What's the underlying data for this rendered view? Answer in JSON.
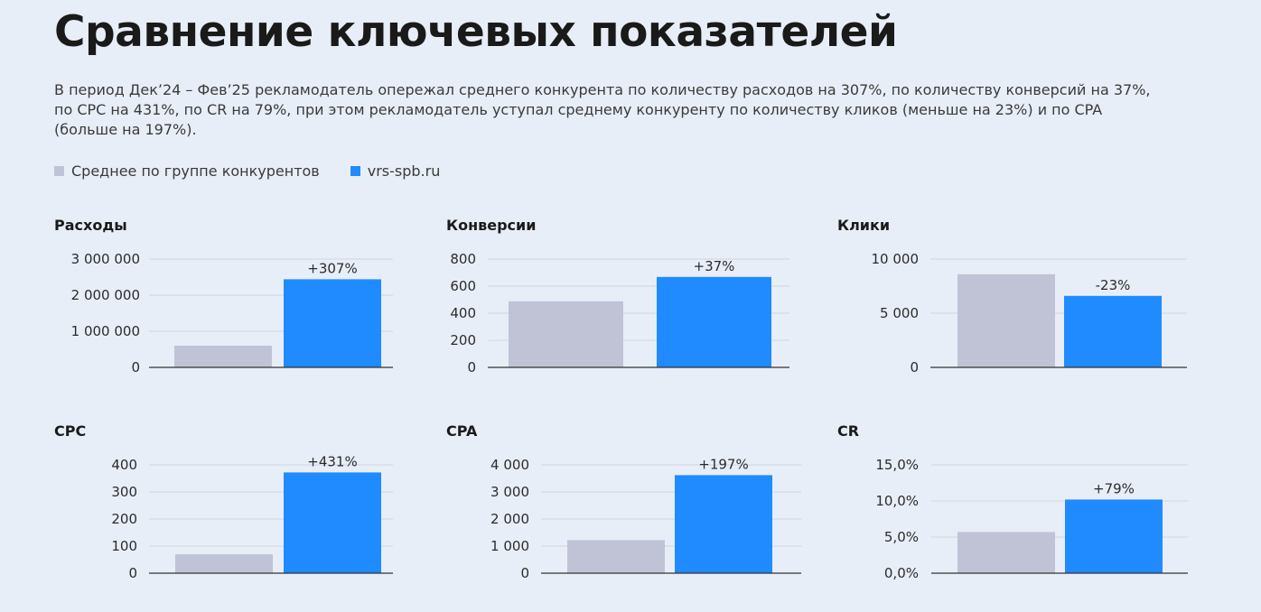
{
  "header": {
    "title": "Сравнение ключевых показателей",
    "subtitle": "В период Дек’24 – Фев’25 рекламодатель опережал среднего конкурента по количеству расходов на 307%, по количеству конверсий на 37%, по CPC на 431%, по CR на 79%, при этом рекламодатель уступал среднему конкуренту по количеству кликов (меньше на 23%) и по CPA (больше на 197%)."
  },
  "legend": {
    "competitors": "Среднее по группе конкурентов",
    "advertiser": "vrs-spb.ru"
  },
  "colors": {
    "competitors": "#bfc3d5",
    "advertiser": "#1f8bff",
    "gridline": "#d0d5e0",
    "axis": "#333333"
  },
  "chart_data": [
    {
      "type": "bar",
      "title": "Расходы",
      "series": [
        {
          "name": "Среднее по группе конкурентов",
          "value": 600000
        },
        {
          "name": "vrs-spb.ru",
          "value": 2440000
        }
      ],
      "bar_label": "+307%",
      "ylim": [
        0,
        3000000
      ],
      "yticks": [
        0,
        1000000,
        2000000,
        3000000
      ],
      "ytick_labels": [
        "0",
        "1 000 000",
        "2 000 000",
        "3 000 000"
      ]
    },
    {
      "type": "bar",
      "title": "Конверсии",
      "series": [
        {
          "name": "Среднее по группе конкурентов",
          "value": 488
        },
        {
          "name": "vrs-spb.ru",
          "value": 668
        }
      ],
      "bar_label": "+37%",
      "ylim": [
        0,
        800
      ],
      "yticks": [
        0,
        200,
        400,
        600,
        800
      ],
      "ytick_labels": [
        "0",
        "200",
        "400",
        "600",
        "800"
      ]
    },
    {
      "type": "bar",
      "title": "Клики",
      "series": [
        {
          "name": "Среднее по группе конкурентов",
          "value": 8600
        },
        {
          "name": "vrs-spb.ru",
          "value": 6600
        }
      ],
      "bar_label": "-23%",
      "ylim": [
        0,
        10000
      ],
      "yticks": [
        0,
        5000,
        10000
      ],
      "ytick_labels": [
        "0",
        "5 000",
        "10 000"
      ]
    },
    {
      "type": "bar",
      "title": "CPC",
      "series": [
        {
          "name": "Среднее по группе конкурентов",
          "value": 70
        },
        {
          "name": "vrs-spb.ru",
          "value": 372
        }
      ],
      "bar_label": "+431%",
      "ylim": [
        0,
        400
      ],
      "yticks": [
        0,
        100,
        200,
        300,
        400
      ],
      "ytick_labels": [
        "0",
        "100",
        "200",
        "300",
        "400"
      ]
    },
    {
      "type": "bar",
      "title": "CPA",
      "series": [
        {
          "name": "Среднее по группе конкурентов",
          "value": 1220
        },
        {
          "name": "vrs-spb.ru",
          "value": 3620
        }
      ],
      "bar_label": "+197%",
      "ylim": [
        0,
        4000
      ],
      "yticks": [
        0,
        1000,
        2000,
        3000,
        4000
      ],
      "ytick_labels": [
        "0",
        "1 000",
        "2 000",
        "3 000",
        "4 000"
      ]
    },
    {
      "type": "bar",
      "title": "CR",
      "series": [
        {
          "name": "Среднее по группе конкурентов",
          "value": 5.7
        },
        {
          "name": "vrs-spb.ru",
          "value": 10.2
        }
      ],
      "bar_label": "+79%",
      "ylim": [
        0,
        15
      ],
      "yticks": [
        0,
        5,
        10,
        15
      ],
      "ytick_labels": [
        "0,0%",
        "5,0%",
        "10,0%",
        "15,0%"
      ]
    }
  ]
}
